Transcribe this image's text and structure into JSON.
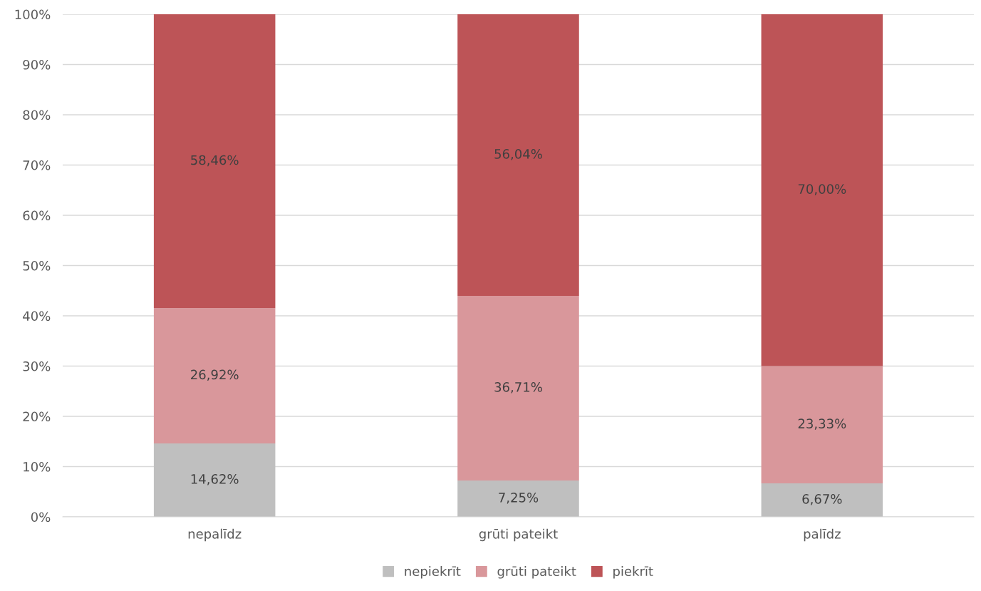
{
  "chart_data": {
    "type": "bar",
    "stacked": true,
    "categories": [
      "nepalīdz",
      "grūti pateikt",
      "palīdz"
    ],
    "series": [
      {
        "name": "nepiekrīt",
        "color": "#bfbfbf",
        "values": [
          14.62,
          7.25,
          6.67
        ],
        "value_labels": [
          "14,62%",
          "7,25%",
          "6,67%"
        ]
      },
      {
        "name": "grūti pateikt",
        "color": "#d9979b",
        "values": [
          26.92,
          36.71,
          23.33
        ],
        "value_labels": [
          "26,92%",
          "36,71%",
          "23,33%"
        ]
      },
      {
        "name": "piekrīt",
        "color": "#bd5457",
        "values": [
          58.46,
          56.04,
          70.0
        ],
        "value_labels": [
          "58,46%",
          "56,04%",
          "70,00%"
        ]
      }
    ],
    "ylim": [
      0,
      100
    ],
    "yticks": [
      {
        "value": 0,
        "label": "0%"
      },
      {
        "value": 10,
        "label": "10%"
      },
      {
        "value": 20,
        "label": "20%"
      },
      {
        "value": 30,
        "label": "30%"
      },
      {
        "value": 40,
        "label": "40%"
      },
      {
        "value": 50,
        "label": "50%"
      },
      {
        "value": 60,
        "label": "60%"
      },
      {
        "value": 70,
        "label": "70%"
      },
      {
        "value": 80,
        "label": "80%"
      },
      {
        "value": 90,
        "label": "90%"
      },
      {
        "value": 100,
        "label": "100%"
      }
    ],
    "grid": "y",
    "legend": "bottom"
  }
}
